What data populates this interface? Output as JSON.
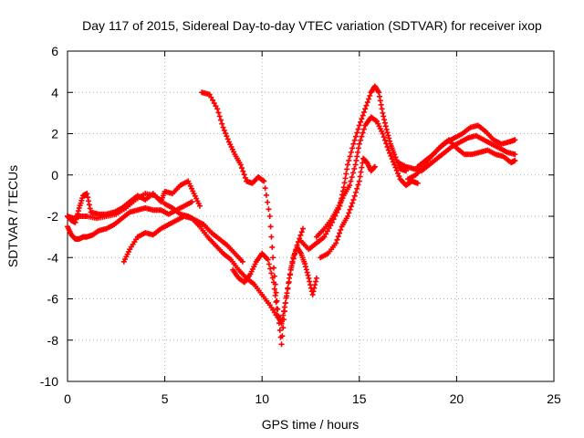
{
  "chart_data": {
    "type": "scatter",
    "title": "Day 117 of 2015, Sidereal Day-to-day VTEC variation (SDTVAR) for receiver ixop",
    "xlabel": "GPS time / hours",
    "ylabel": "SDTVAR / TECUs",
    "xlim": [
      0,
      25
    ],
    "ylim": [
      -10,
      6
    ],
    "xticks": [
      0,
      5,
      10,
      15,
      20,
      25
    ],
    "yticks": [
      -10,
      -8,
      -6,
      -4,
      -2,
      0,
      2,
      4,
      6
    ],
    "grid": true,
    "marker": "+",
    "color": "#ff0000",
    "series": [
      {
        "x": [
          0.0,
          0.2,
          0.4,
          0.6,
          0.8,
          1.0,
          1.3,
          1.6,
          2.0,
          2.4,
          2.8,
          3.2,
          3.6,
          4.0,
          4.4,
          4.8,
          5.2,
          5.6,
          6.0,
          6.4
        ],
        "y": [
          -2.5,
          -2.9,
          -3.1,
          -3.1,
          -3.0,
          -3.0,
          -2.9,
          -2.7,
          -2.6,
          -2.4,
          -2.1,
          -1.8,
          -1.7,
          -1.6,
          -1.7,
          -1.7,
          -1.9,
          -1.7,
          -1.5,
          -1.3
        ]
      },
      {
        "x": [
          0.0,
          0.2,
          0.4,
          0.6,
          0.8,
          1.0,
          1.2,
          1.6,
          2.0,
          2.4,
          2.8,
          3.2,
          3.6,
          4.0,
          4.4,
          4.8,
          5.0,
          5.4,
          5.8,
          6.2,
          6.5,
          6.8
        ],
        "y": [
          -2.0,
          -2.2,
          -2.3,
          -1.6,
          -1.0,
          -0.9,
          -1.8,
          -1.9,
          -1.9,
          -1.8,
          -1.6,
          -1.3,
          -1.0,
          -1.2,
          -0.9,
          -1.3,
          -0.8,
          -0.9,
          -0.5,
          -0.3,
          -0.9,
          -1.5
        ]
      },
      {
        "x": [
          0.0,
          0.3,
          0.6,
          1.0,
          1.5,
          2.0,
          2.5,
          3.0,
          3.5,
          4.0,
          4.5,
          5.0,
          5.4,
          5.8,
          6.2,
          6.6,
          7.0,
          7.4,
          7.8,
          8.2,
          8.6,
          9.0
        ],
        "y": [
          -2.0,
          -2.1,
          -2.0,
          -2.0,
          -2.1,
          -2.0,
          -1.9,
          -1.6,
          -1.2,
          -0.9,
          -1.0,
          -1.4,
          -1.6,
          -1.9,
          -2.0,
          -2.2,
          -2.4,
          -2.8,
          -3.1,
          -3.4,
          -3.8,
          -4.2
        ]
      },
      {
        "x": [
          2.9,
          3.2,
          3.6,
          4.0,
          4.4,
          4.8,
          5.2,
          5.6,
          6.0,
          6.4,
          6.8,
          7.2,
          7.6,
          8.0,
          8.4,
          8.8,
          9.2,
          9.6,
          10.0,
          10.4,
          10.8
        ],
        "y": [
          -4.2,
          -3.6,
          -3.0,
          -2.8,
          -2.9,
          -2.6,
          -2.4,
          -2.2,
          -2.0,
          -2.1,
          -2.5,
          -3.0,
          -3.4,
          -3.8,
          -4.1,
          -4.6,
          -5.0,
          -5.3,
          -5.8,
          -6.3,
          -6.9
        ]
      },
      {
        "x": [
          6.9,
          7.3,
          7.7,
          8.0,
          8.3,
          8.6,
          8.9,
          9.2,
          9.5,
          9.8,
          10.1,
          10.4,
          10.6,
          10.8,
          11.0,
          11.2,
          11.5,
          11.8,
          12.1
        ],
        "y": [
          4.0,
          3.9,
          3.2,
          2.3,
          1.6,
          1.0,
          0.5,
          -0.3,
          -0.4,
          -0.1,
          -0.3,
          -2.0,
          -4.5,
          -6.5,
          -8.2,
          -6.2,
          -4.5,
          -3.4,
          -2.6
        ]
      },
      {
        "x": [
          8.5,
          8.8,
          9.1,
          9.4,
          9.7,
          10.0,
          10.3,
          10.6,
          10.8,
          11.0,
          11.2,
          11.4,
          11.6,
          11.8,
          12.0,
          12.2,
          12.4,
          12.6,
          12.8
        ],
        "y": [
          -4.6,
          -5.0,
          -5.2,
          -4.8,
          -4.2,
          -3.8,
          -4.1,
          -5.2,
          -6.8,
          -7.2,
          -6.2,
          -5.0,
          -4.0,
          -3.5,
          -3.8,
          -4.3,
          -5.0,
          -5.8,
          -5.0
        ]
      },
      {
        "x": [
          12.0,
          12.4,
          12.8,
          13.2,
          13.6,
          14.0,
          14.2,
          14.4,
          14.7,
          15.0,
          15.3,
          15.6,
          15.8,
          16.0,
          16.2,
          16.4,
          16.6,
          16.8,
          17.1,
          17.4
        ],
        "y": [
          -3.2,
          -3.6,
          -3.3,
          -3.0,
          -2.3,
          -1.5,
          -0.6,
          0.5,
          1.5,
          2.4,
          3.2,
          4.0,
          4.3,
          4.0,
          3.0,
          2.2,
          1.5,
          1.0,
          0.3,
          0.2
        ]
      },
      {
        "x": [
          12.8,
          13.2,
          13.6,
          13.9,
          14.2,
          14.5,
          14.8,
          15.0,
          15.3,
          15.6,
          15.9,
          16.2,
          16.5,
          16.8,
          17.1,
          17.4,
          17.7,
          18.0
        ],
        "y": [
          -3.0,
          -2.6,
          -2.1,
          -1.6,
          -1.0,
          -0.5,
          0.5,
          1.5,
          2.4,
          2.8,
          2.6,
          2.0,
          1.2,
          0.5,
          -0.2,
          -0.5,
          -0.3,
          -0.4
        ]
      },
      {
        "x": [
          13.0,
          13.4,
          13.8,
          14.1,
          14.4,
          14.7,
          15.0,
          15.2,
          15.4,
          15.6,
          15.8
        ],
        "y": [
          -4.0,
          -3.8,
          -3.3,
          -2.5,
          -2.0,
          -1.2,
          -0.3,
          0.8,
          0.6,
          0.2,
          0.4
        ]
      },
      {
        "x": [
          17.0,
          17.4,
          17.8,
          18.2,
          18.6,
          19.0,
          19.4,
          19.8,
          20.2,
          20.6,
          21.0,
          21.4,
          21.8,
          22.2,
          22.6,
          23.0
        ],
        "y": [
          0.6,
          0.4,
          0.3,
          0.2,
          0.5,
          0.8,
          1.1,
          1.4,
          1.6,
          1.8,
          1.9,
          1.7,
          1.5,
          1.3,
          1.1,
          1.0
        ]
      },
      {
        "x": [
          17.5,
          17.9,
          18.3,
          18.7,
          19.1,
          19.5,
          19.9,
          20.3,
          20.7,
          21.1,
          21.5,
          21.9,
          22.3,
          22.7,
          23.0
        ],
        "y": [
          -0.2,
          0.0,
          0.4,
          0.9,
          1.3,
          1.6,
          1.8,
          2.0,
          2.3,
          2.4,
          2.1,
          1.7,
          1.5,
          1.6,
          1.7
        ]
      },
      {
        "x": [
          18.0,
          18.4,
          18.8,
          19.2,
          19.6,
          20.0,
          20.4,
          20.8,
          21.2,
          21.6,
          22.0,
          22.4,
          22.8,
          23.0
        ],
        "y": [
          0.4,
          0.7,
          1.0,
          1.4,
          1.7,
          1.3,
          1.0,
          1.0,
          1.1,
          1.2,
          1.0,
          0.9,
          0.6,
          0.7
        ]
      }
    ]
  }
}
